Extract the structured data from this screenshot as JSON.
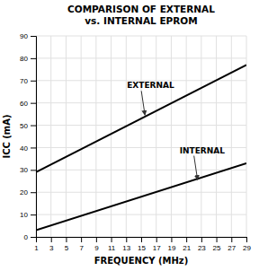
{
  "chart_data": {
    "type": "line",
    "title": "COMPARISON OF EXTERNAL\nvs. INTERNAL EPROM",
    "x_label": "FREQUENCY (MHz)",
    "y_label": "ICC (mA)",
    "x": [
      1,
      29
    ],
    "series": [
      {
        "color": "#000000",
        "values": [
          29,
          77
        ]
      },
      {
        "color": "#000000",
        "values": [
          3,
          33
        ]
      }
    ],
    "xlim": [
      1,
      29
    ],
    "ylim": [
      0,
      90
    ],
    "xticks": [
      1,
      3,
      5,
      7,
      9,
      11,
      13,
      15,
      17,
      19,
      21,
      23,
      25,
      27,
      29
    ],
    "yticks": [
      0,
      10,
      20,
      30,
      40,
      50,
      60,
      70,
      80,
      90
    ],
    "grid": true,
    "annotations": [
      {
        "text": "EXTERNAL",
        "x": 15.5,
        "y": 54.5
      },
      {
        "text": "INTERNAL",
        "x": 22.5,
        "y": 25.5
      }
    ]
  }
}
